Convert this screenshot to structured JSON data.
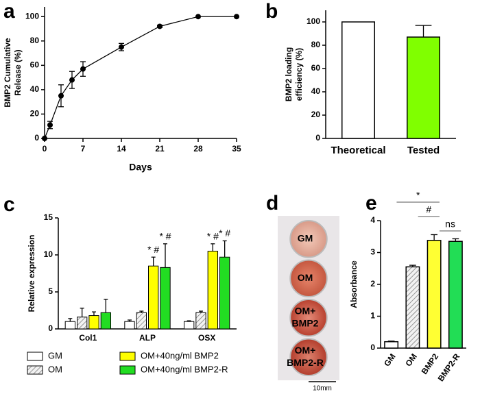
{
  "chart_data": [
    {
      "panel_label": "a",
      "type": "line",
      "x": [
        0,
        1,
        3,
        5,
        7,
        14,
        21,
        28,
        35
      ],
      "values": [
        0,
        11,
        35,
        48,
        57,
        75,
        92,
        100,
        100
      ],
      "errors": [
        0,
        3,
        9,
        7,
        6,
        3,
        1,
        0,
        0
      ],
      "color": "#000000",
      "xlim": [
        0,
        35
      ],
      "xticks": [
        0,
        7,
        14,
        21,
        28,
        35
      ],
      "ylim": [
        0,
        108
      ],
      "yticks": [
        0,
        20,
        40,
        60,
        80,
        100
      ],
      "xlabel": "Days",
      "ylabel": [
        "BMP2 Cumulative",
        "Release  (%)"
      ]
    },
    {
      "panel_label": "b",
      "type": "bar",
      "categories": [
        "Theoretical",
        "Tested"
      ],
      "values": [
        100,
        87
      ],
      "errors": [
        null,
        10
      ],
      "colors": [
        "#ffffff",
        "#80ff00"
      ],
      "ylim": [
        0,
        110
      ],
      "yticks": [
        0,
        20,
        40,
        60,
        80,
        100
      ],
      "ylabel": [
        "BMP2 loading",
        "efficiency (%)"
      ]
    },
    {
      "panel_label": "c",
      "type": "grouped_bar",
      "categories": [
        "Col1",
        "ALP",
        "OSX"
      ],
      "ylim": [
        0,
        15
      ],
      "yticks": [
        0,
        5,
        10,
        15
      ],
      "ylabel": [
        "Relative expression"
      ],
      "series": [
        {
          "name": "GM",
          "color": "#ffffff",
          "values": [
            1.0,
            1.0,
            1.0
          ],
          "errors": [
            0.4,
            0.2,
            0.1
          ]
        },
        {
          "name": "OM",
          "color": "#d9d9d9",
          "pattern": "hatch",
          "values": [
            1.6,
            2.2,
            2.2
          ],
          "errors": [
            1.2,
            0.2,
            0.2
          ]
        },
        {
          "name": "OM+40ng/ml BMP2",
          "color": "#ffff00",
          "values": [
            1.8,
            8.5,
            10.5
          ],
          "errors": [
            0.5,
            1.2,
            1.0
          ],
          "annotations": [
            null,
            "* #",
            "* #"
          ]
        },
        {
          "name": "OM+40ng/ml BMP2-R",
          "color": "#22dd22",
          "values": [
            2.2,
            8.3,
            9.7
          ],
          "errors": [
            1.8,
            3.2,
            2.2
          ],
          "annotations": [
            null,
            "* #",
            "* #"
          ]
        }
      ]
    },
    {
      "panel_label": "d",
      "type": "image",
      "labels": [
        [
          "GM"
        ],
        [
          "OM"
        ],
        [
          "OM+",
          "BMP2"
        ],
        [
          "OM+",
          "BMP2-R"
        ]
      ],
      "scale_label": "10mm"
    },
    {
      "panel_label": "e",
      "type": "bar",
      "categories": [
        "GM",
        "OM",
        "BMP2",
        "BMP2-R"
      ],
      "values": [
        0.2,
        2.55,
        3.38,
        3.35
      ],
      "errors": [
        0.02,
        0.05,
        0.18,
        0.08
      ],
      "colors": [
        "#ffffff",
        "#d9d9d9",
        "#ffff33",
        "#22dd55"
      ],
      "patterns": [
        null,
        "hatch",
        null,
        null
      ],
      "rotate_labels": true,
      "ylim": [
        0,
        4
      ],
      "yticks": [
        0,
        1,
        2,
        3,
        4
      ],
      "ylabel": [
        "Absorbance"
      ],
      "significance": [
        {
          "label": "*",
          "between": [
            "GM",
            "BMP2"
          ]
        },
        {
          "label": "#",
          "between": [
            "OM",
            "BMP2"
          ]
        },
        {
          "label": "ns",
          "between": [
            "BMP2",
            "BMP2-R"
          ]
        }
      ]
    }
  ]
}
